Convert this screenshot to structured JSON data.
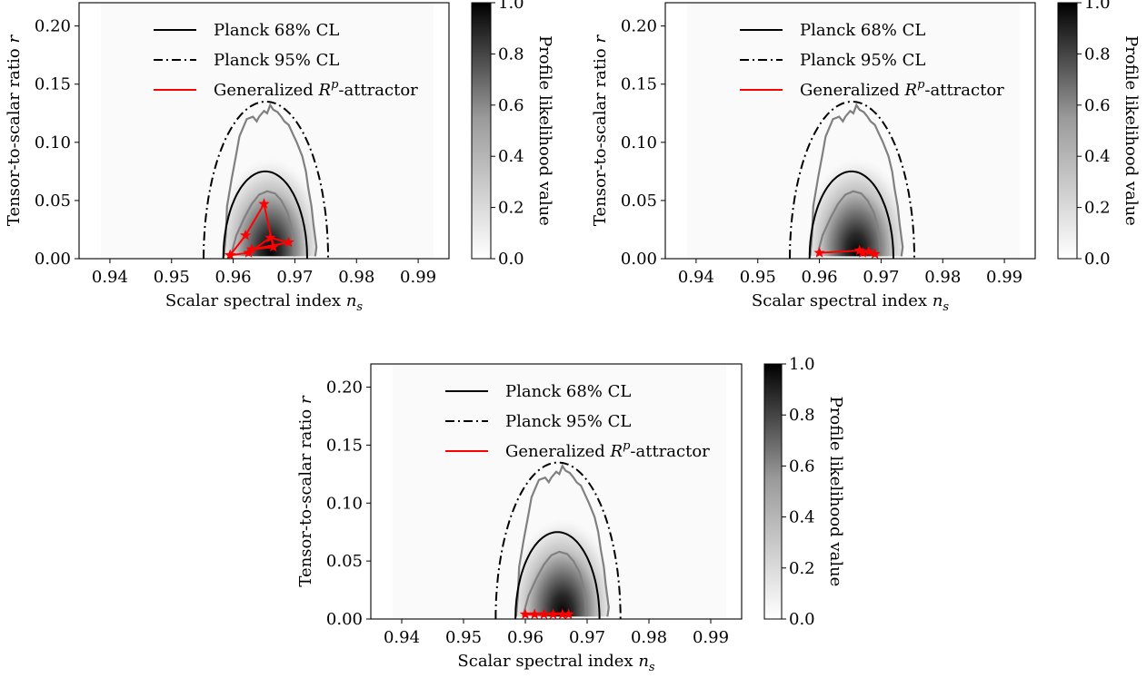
{
  "colors": {
    "planck": "#000000",
    "attractor": "#ff0000",
    "likelihood_contour": "#808080",
    "colormap_low": "#ffffff",
    "colormap_high": "#000000"
  },
  "labels": {
    "xlabel": "Scalar spectral index",
    "xlabel_symbol": "n",
    "xlabel_sub": "s",
    "ylabel": "Tensor-to-scalar ratio",
    "ylabel_symbol": "r",
    "colorbar_label": "Profile likelihood value"
  },
  "legend": {
    "planck68": "Planck 68% CL",
    "planck95": "Planck 95% CL",
    "attractor_prefix": "Generalized ",
    "attractor_R": "R",
    "attractor_p": "p",
    "attractor_suffix": "-attractor"
  },
  "chart_data": [
    {
      "type": "heatmap",
      "xlim": [
        0.935,
        0.995
      ],
      "ylim": [
        0,
        0.22
      ],
      "xticks": [
        "0.94",
        "0.95",
        "0.96",
        "0.97",
        "0.98",
        "0.99"
      ],
      "yticks": [
        "0.00",
        "0.05",
        "0.10",
        "0.15",
        "0.20"
      ],
      "colorbar_ticks": [
        "0.0",
        "0.2",
        "0.4",
        "0.6",
        "0.8",
        "1.0"
      ],
      "colorbar_range": [
        0,
        1
      ],
      "legend_position": "top-center",
      "grid": false,
      "series": [
        {
          "name": "Generalized R^p-attractor",
          "points": [
            [
              0.9595,
              0.003
            ],
            [
              0.962,
              0.02
            ],
            [
              0.965,
              0.047
            ],
            [
              0.9665,
              0.01
            ],
            [
              0.963,
              0.008
            ],
            [
              0.969,
              0.014
            ],
            [
              0.966,
              0.018
            ],
            [
              0.9625,
              0.005
            ],
            [
              0.9595,
              0.003
            ]
          ]
        }
      ]
    },
    {
      "type": "heatmap",
      "xlim": [
        0.935,
        0.995
      ],
      "ylim": [
        0,
        0.22
      ],
      "xticks": [
        "0.94",
        "0.95",
        "0.96",
        "0.97",
        "0.98",
        "0.99"
      ],
      "yticks": [
        "0.00",
        "0.05",
        "0.10",
        "0.15",
        "0.20"
      ],
      "colorbar_ticks": [
        "0.0",
        "0.2",
        "0.4",
        "0.6",
        "0.8",
        "1.0"
      ],
      "colorbar_range": [
        0,
        1
      ],
      "legend_position": "top-center",
      "grid": false,
      "series": [
        {
          "name": "Generalized R^p-attractor",
          "points": [
            [
              0.96,
              0.005
            ],
            [
              0.9665,
              0.007
            ],
            [
              0.967,
              0.005
            ],
            [
              0.968,
              0.006
            ],
            [
              0.969,
              0.004
            ]
          ]
        }
      ]
    },
    {
      "type": "heatmap",
      "xlim": [
        0.935,
        0.995
      ],
      "ylim": [
        0,
        0.22
      ],
      "xticks": [
        "0.94",
        "0.95",
        "0.96",
        "0.97",
        "0.98",
        "0.99"
      ],
      "yticks": [
        "0.00",
        "0.05",
        "0.10",
        "0.15",
        "0.20"
      ],
      "colorbar_ticks": [
        "0.0",
        "0.2",
        "0.4",
        "0.6",
        "0.8",
        "1.0"
      ],
      "colorbar_range": [
        0,
        1
      ],
      "legend_position": "top-center",
      "grid": false,
      "series": [
        {
          "name": "Generalized R^p-attractor",
          "points": [
            [
              0.96,
              0.004
            ],
            [
              0.9615,
              0.004
            ],
            [
              0.963,
              0.004
            ],
            [
              0.9645,
              0.004
            ],
            [
              0.966,
              0.004
            ],
            [
              0.967,
              0.004
            ]
          ]
        }
      ]
    }
  ]
}
